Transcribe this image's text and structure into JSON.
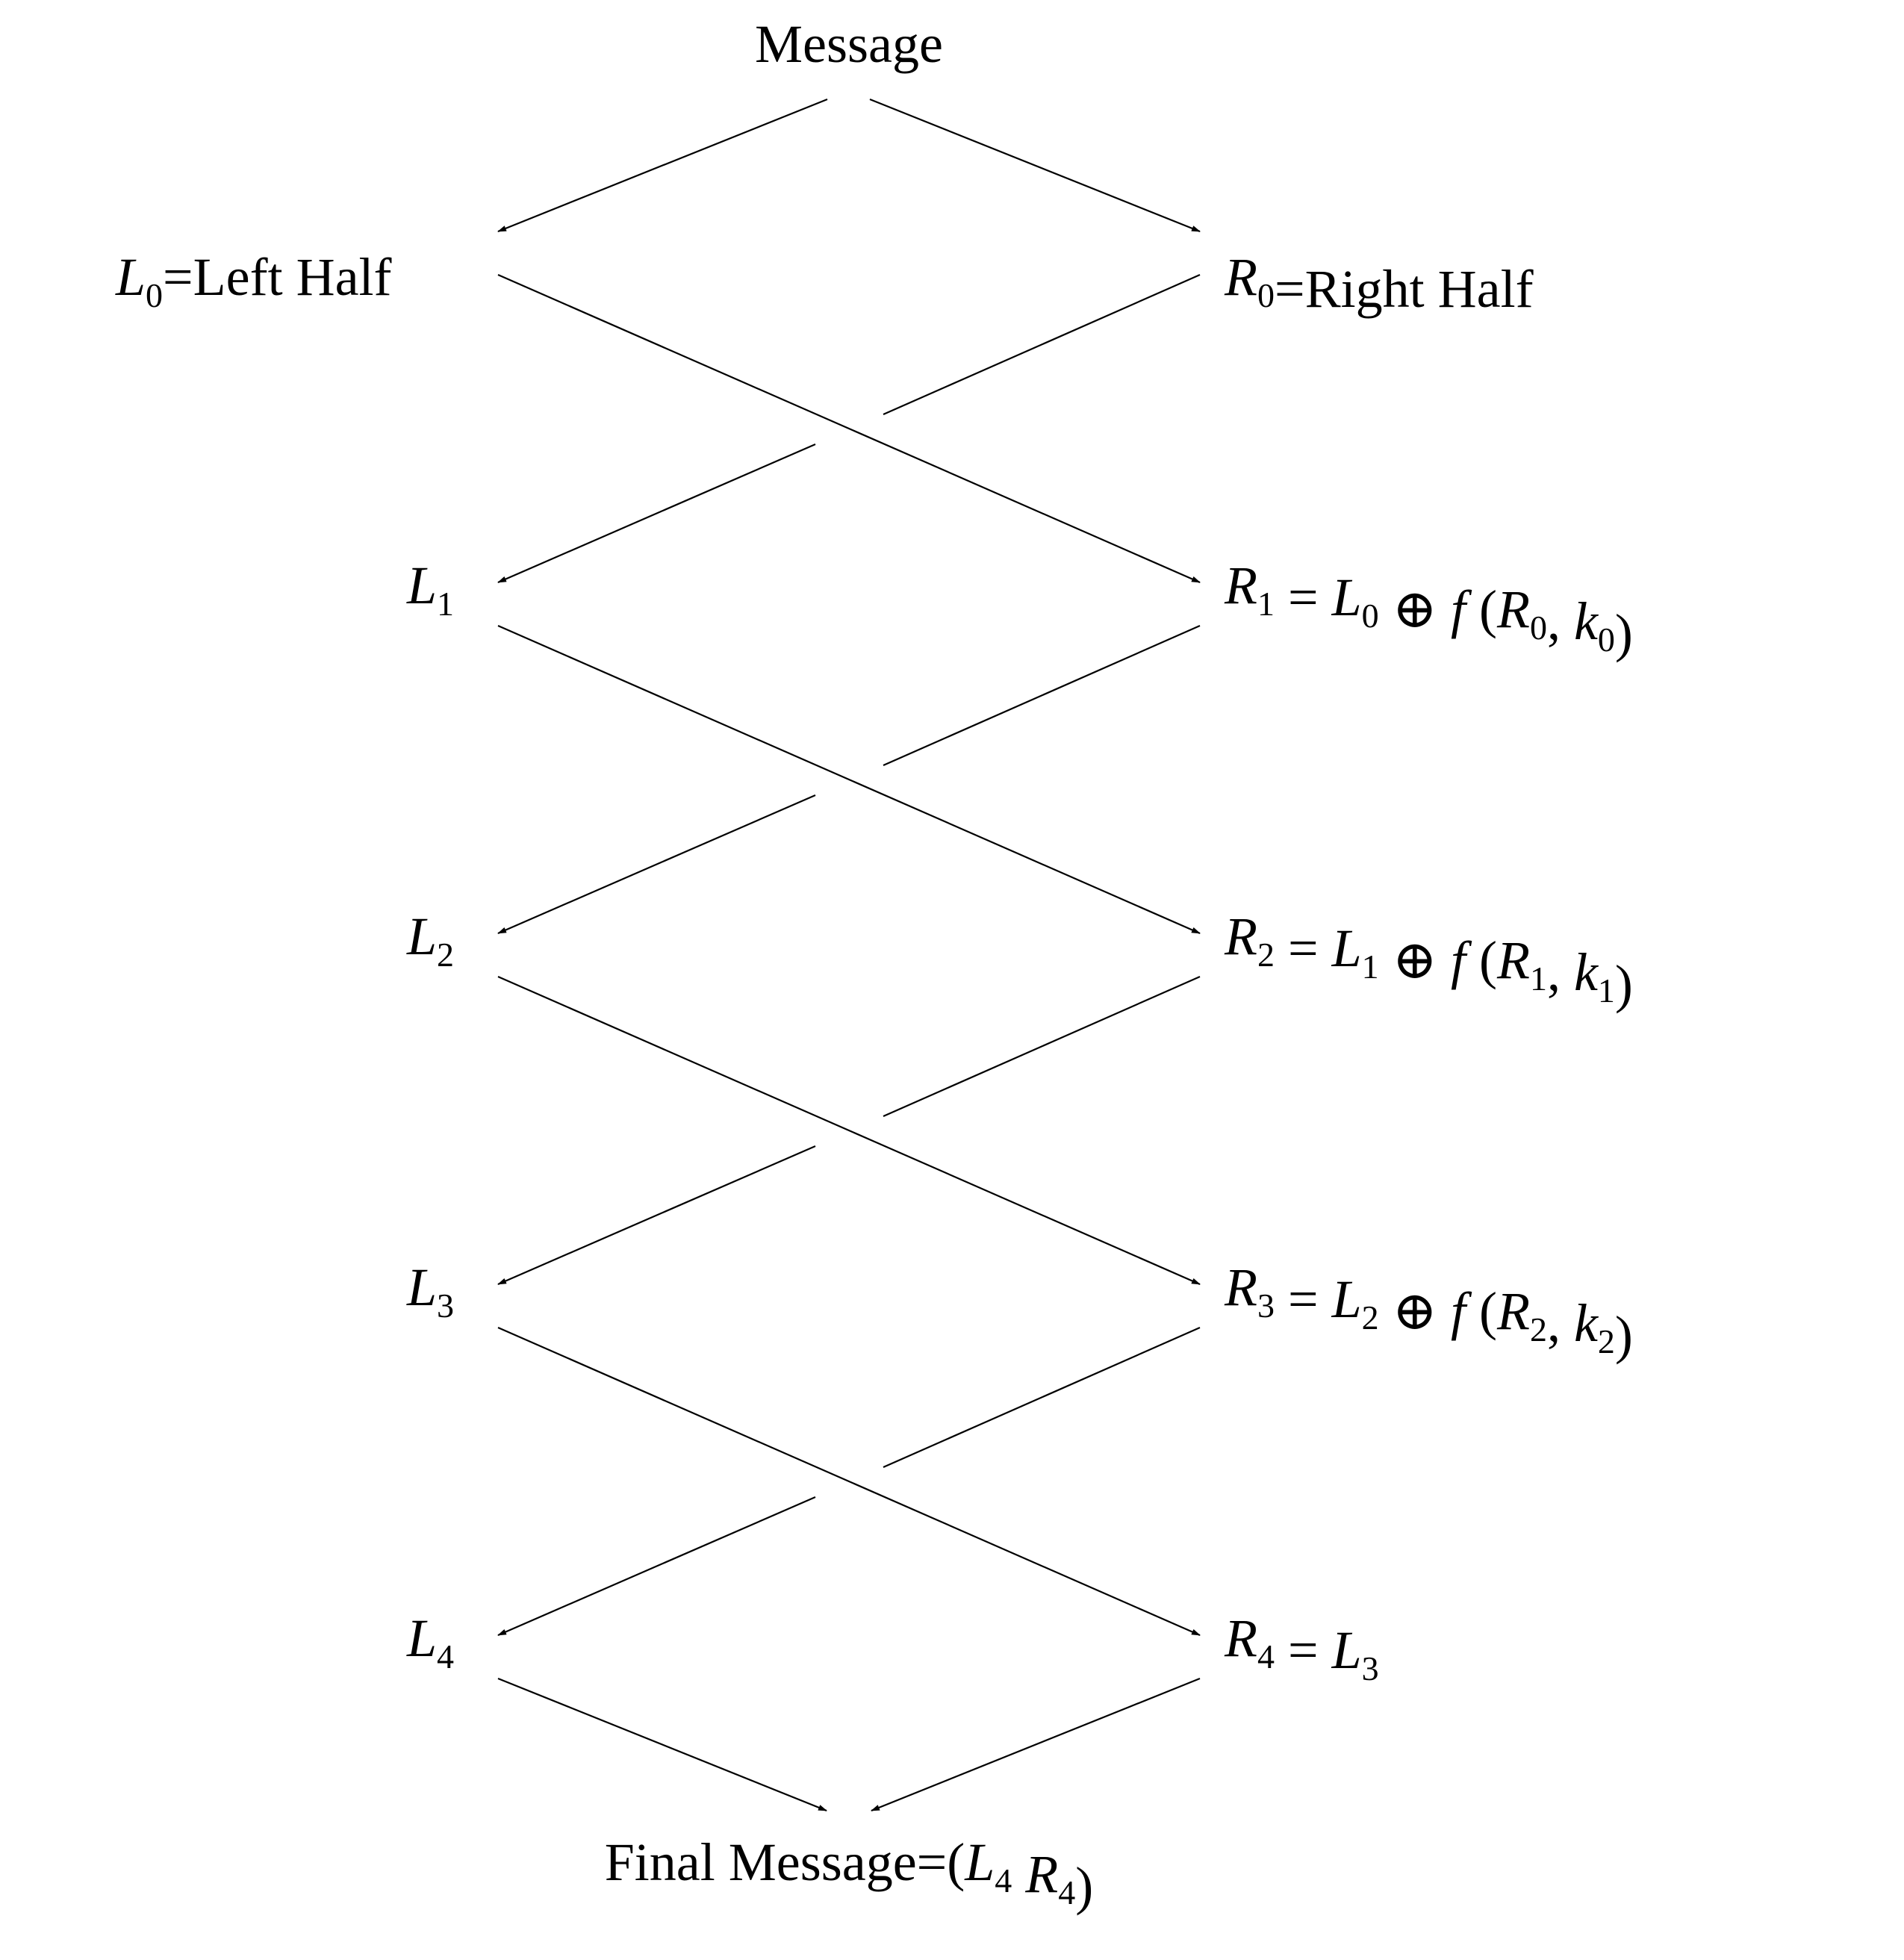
{
  "title": "Message",
  "left_nodes": [
    {
      "letter": "L",
      "sub": "0",
      "text": "=Left Half"
    },
    {
      "letter": "L",
      "sub": "1",
      "text": ""
    },
    {
      "letter": "L",
      "sub": "2",
      "text": ""
    },
    {
      "letter": "L",
      "sub": "3",
      "text": ""
    },
    {
      "letter": "L",
      "sub": "4",
      "text": ""
    }
  ],
  "right_nodes": [
    {
      "plain": "R0=Right Half"
    },
    {
      "plain": "R1 = L0 ⊕ f (R0, k0)"
    },
    {
      "plain": "R2 = L1 ⊕ f (R1, k1)"
    },
    {
      "plain": "R3 = L2 ⊕ f (R2, k2)"
    },
    {
      "plain": "R4 = L3"
    }
  ],
  "final": "Final Message=(L4 R4)"
}
